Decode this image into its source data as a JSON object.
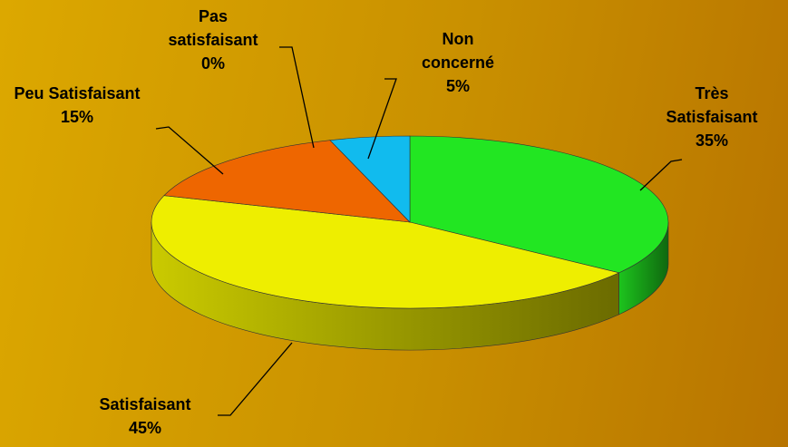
{
  "chart_data": {
    "type": "pie",
    "categories": [
      "Très Satisfaisant",
      "Satisfaisant",
      "Peu Satisfaisant",
      "Pas satisfaisant",
      "Non concerné"
    ],
    "values": [
      35,
      45,
      15,
      0,
      5
    ],
    "value_labels": [
      "35%",
      "45%",
      "15%",
      "0%",
      "5%"
    ],
    "colors": [
      "#22e622",
      "#eeee00",
      "#ee6600",
      "#aa1100",
      "#11bbee"
    ]
  }
}
